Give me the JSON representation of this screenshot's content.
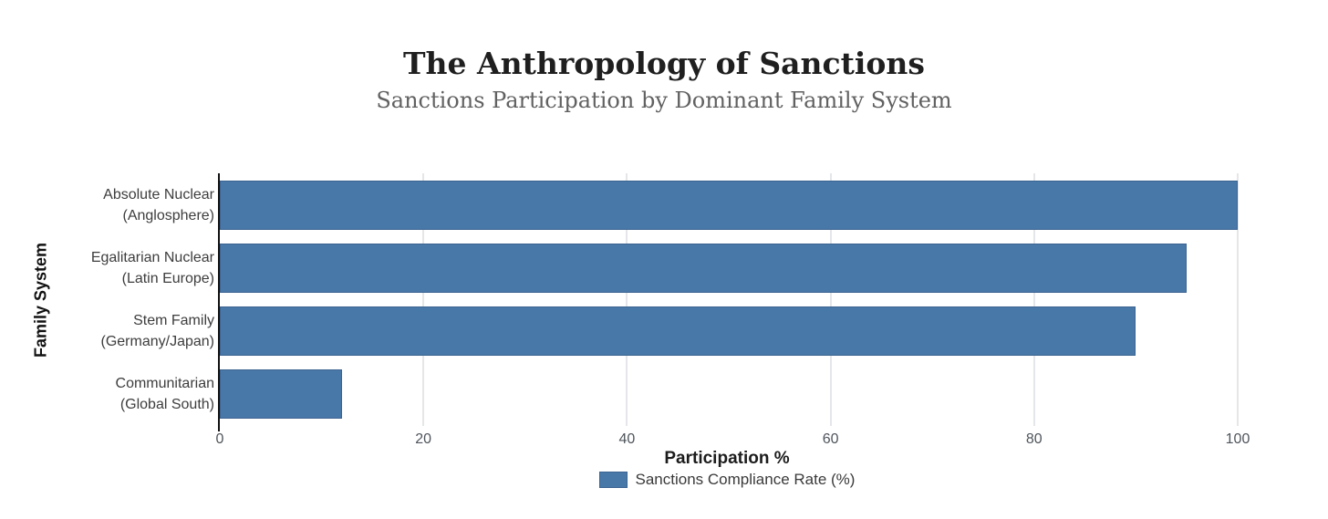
{
  "chart_data": {
    "type": "bar",
    "orientation": "horizontal",
    "title": "The Anthropology of Sanctions",
    "subtitle": "Sanctions Participation by Dominant Family System",
    "xlabel": "Participation %",
    "ylabel": "Family System",
    "legend": [
      "Sanctions Compliance Rate (%)"
    ],
    "legend_position": "bottom-center",
    "grid": "vertical-only",
    "xlim": [
      0,
      100
    ],
    "xticks": [
      0,
      20,
      40,
      60,
      80,
      100
    ],
    "categories": [
      "Absolute Nuclear (Anglosphere)",
      "Egalitarian Nuclear (Latin Europe)",
      "Stem Family (Germany/Japan)",
      "Communitarian (Global South)"
    ],
    "category_label_lines": [
      [
        "Absolute Nuclear",
        "(Anglosphere)"
      ],
      [
        "Egalitarian Nuclear",
        "(Latin Europe)"
      ],
      [
        "Stem Family",
        "(Germany/Japan)"
      ],
      [
        "Communitarian",
        "(Global South)"
      ]
    ],
    "series": [
      {
        "name": "Sanctions Compliance Rate (%)",
        "values": [
          100,
          95,
          90,
          12
        ]
      }
    ],
    "colors": {
      "bar_fill": "#4878a8",
      "bar_edge": "#3b6391",
      "gridline": "#e4e6e9",
      "axis_line": "#111111",
      "title_text": "#1f1f1f",
      "subtitle_text": "#616161",
      "tick_text": "#4f555c",
      "category_text": "#3d3d3d"
    }
  }
}
